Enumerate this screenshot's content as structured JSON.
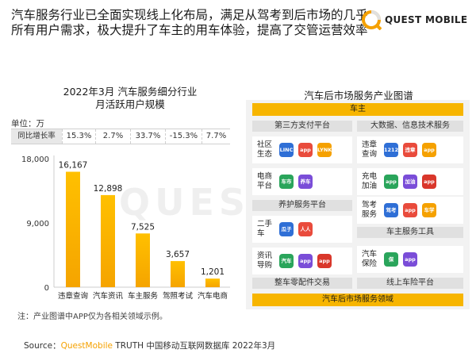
{
  "headline": "汽车服务行业已全面实现线上化布局，满足从驾考到后市场的几乎所有用户需求，极大提升了车主的用车体验，提高了交管运营效率",
  "logo": {
    "text": "QUEST MOBILE"
  },
  "watermark": "QUESTMOBILE",
  "left_chart": {
    "title_line1": "2022年3月 汽车服务细分行业",
    "title_line2": "月活跃用户规模",
    "unit": "单位：万",
    "growth_header": "同比增长率",
    "growth_rates": [
      "15.3%",
      "2.7%",
      "33.7%",
      "-15.3%",
      "7.7%"
    ]
  },
  "chart_data": {
    "type": "bar",
    "categories": [
      "违章查询",
      "汽车资讯",
      "车主服务",
      "驾照考试",
      "汽车电商"
    ],
    "values": [
      16167,
      12898,
      7525,
      3657,
      1201
    ],
    "data_labels": [
      "16,167",
      "12,898",
      "7,525",
      "3,657",
      "1,201"
    ],
    "y_ticks": [
      0,
      9000,
      18000
    ],
    "y_tick_labels": [
      "0",
      "9,000",
      "18,000"
    ],
    "ylim": [
      0,
      18000
    ],
    "title": "2022年3月 汽车服务细分行业 月活跃用户规模",
    "colors": {
      "bar_top": "#ffc000",
      "bar_bottom": "#f5a400"
    }
  },
  "note": "注：产业图谱中APP仅为各相关领域示例。",
  "source": {
    "prefix": "Source：",
    "brand": "QuestMobile",
    "rest": " TRUTH 中国移动互联网数据库 2022年3月"
  },
  "industry_map": {
    "title": "汽车后市场服务产业图谱",
    "top_bar": "车主",
    "left_header": "第三方支付平台",
    "right_header": "大数据、信息技术服务",
    "left_mid_bar": "养护服务平台",
    "left_bottom_bar": "整车零配件交易",
    "right_mid_bar": "车主服务工具",
    "right_bottom_bar": "线上车险平台",
    "footer_bar": "汽车后市场服务领域",
    "left_cards": [
      {
        "label": "社区生态",
        "icons": [
          "LINC",
          "app",
          "LYNK"
        ]
      },
      {
        "label": "电商平台",
        "icons": [
          "车市",
          "养车"
        ]
      },
      {
        "label": "二手车",
        "icons": [
          "瓜子",
          "人人车"
        ]
      },
      {
        "label": "资讯导购",
        "icons": [
          "汽车之家",
          "app",
          "app"
        ]
      }
    ],
    "right_cards": [
      {
        "label": "违章查询",
        "icons": [
          "12123",
          "违章",
          "app"
        ]
      },
      {
        "label": "充电加油",
        "icons": [
          "app",
          "加油",
          "app"
        ]
      },
      {
        "label": "驾考服务",
        "icons": [
          "驾考",
          "app",
          "车学堂"
        ]
      },
      {
        "label": "汽车保险",
        "icons": [
          "保",
          "app"
        ]
      }
    ],
    "colors": {
      "accent": "#f7b500",
      "panel": "#f2f2f2",
      "grey_bar": "#e0e0e0"
    }
  }
}
